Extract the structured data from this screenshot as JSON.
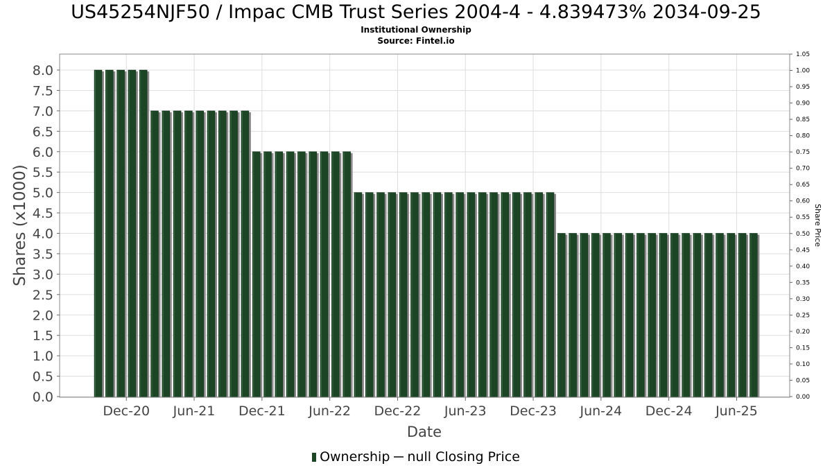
{
  "title": "US45254NJF50 / Impac CMB Trust Series 2004-4 - 4.839473% 2034-09-25",
  "subtitle": "Institutional Ownership",
  "source": "Source: Fintel.io",
  "colors": {
    "bar": "#1c4526",
    "bar_shadow": "#8a8a8a",
    "grid": "#dddddd",
    "frame": "#888888"
  },
  "legend": {
    "ownership_label": "Ownership",
    "price_label": "null Closing Price"
  },
  "chart_data": {
    "type": "bar",
    "xlabel": "Date",
    "ylabel": "Shares (x1000)",
    "y2label": "Share Price",
    "ylim": [
      0,
      8.0
    ],
    "y2lim": [
      0,
      1.05
    ],
    "yticks": [
      "0.0",
      "0.5",
      "1.0",
      "1.5",
      "2.0",
      "2.5",
      "3.0",
      "3.5",
      "4.0",
      "4.5",
      "5.0",
      "5.5",
      "6.0",
      "6.5",
      "7.0",
      "7.5",
      "8.0"
    ],
    "y2ticks": [
      "0.00",
      "0.05",
      "0.10",
      "0.15",
      "0.20",
      "0.25",
      "0.30",
      "0.35",
      "0.40",
      "0.45",
      "0.50",
      "0.55",
      "0.60",
      "0.65",
      "0.70",
      "0.75",
      "0.80",
      "0.85",
      "0.90",
      "0.95",
      "1.00",
      "1.05"
    ],
    "xticks": [
      {
        "label": "Dec-20",
        "bar": 2.5
      },
      {
        "label": "Jun-21",
        "bar": 8.5
      },
      {
        "label": "Dec-21",
        "bar": 14.5
      },
      {
        "label": "Jun-22",
        "bar": 20.5
      },
      {
        "label": "Dec-22",
        "bar": 26.5
      },
      {
        "label": "Jun-23",
        "bar": 32.5
      },
      {
        "label": "Dec-23",
        "bar": 38.5
      },
      {
        "label": "Jun-24",
        "bar": 44.5
      },
      {
        "label": "Dec-24",
        "bar": 50.5
      },
      {
        "label": "Jun-25",
        "bar": 56.5
      }
    ],
    "grid": true,
    "legend_position": "bottom",
    "series": [
      {
        "name": "Ownership",
        "values": [
          8,
          8,
          8,
          8,
          8,
          7,
          7,
          7,
          7,
          7,
          7,
          7,
          7,
          7,
          6,
          6,
          6,
          6,
          6,
          6,
          6,
          6,
          6,
          5,
          5,
          5,
          5,
          5,
          5,
          5,
          5,
          5,
          5,
          5,
          5,
          5,
          5,
          5,
          5,
          5,
          5,
          4,
          4,
          4,
          4,
          4,
          4,
          4,
          4,
          4,
          4,
          4,
          4,
          4,
          4,
          4,
          4,
          4,
          4
        ]
      }
    ]
  }
}
